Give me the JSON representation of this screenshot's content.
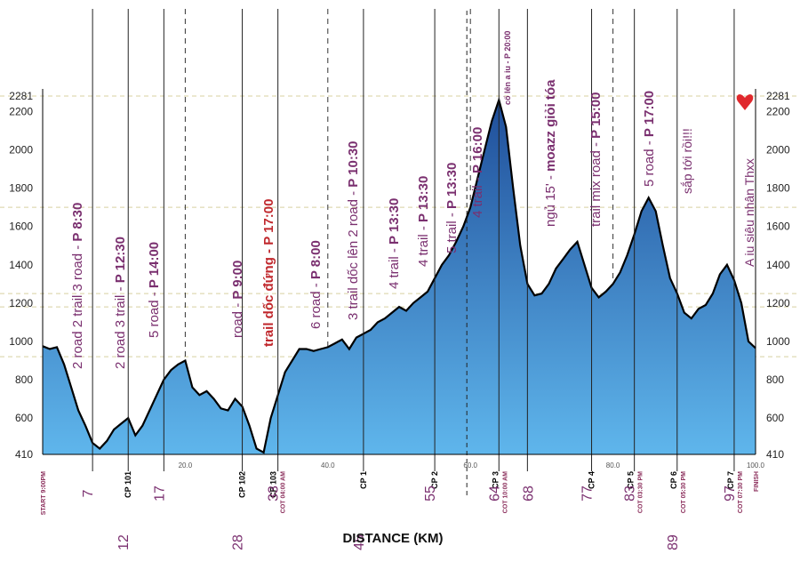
{
  "chart_data": {
    "type": "area",
    "xlabel": "DISTANCE (KM)",
    "xlim": [
      0,
      100
    ],
    "ylim": [
      410,
      2281
    ],
    "y_ticks_left": [
      "2281",
      "2200",
      "2000",
      "1800",
      "1600",
      "1400",
      "1200",
      "1000",
      "800",
      "600",
      "410"
    ],
    "y_ticks_right": [
      "2281",
      "2200",
      "2000",
      "1800",
      "1600",
      "1400",
      "1200",
      "1000",
      "800",
      "600",
      "410"
    ],
    "x_ticks": [
      "20.0",
      "40.0",
      "60.0",
      "80.0",
      "100.0"
    ],
    "colors": {
      "fill_top": "#1f4e9a",
      "fill_bottom": "#5fb6ec",
      "label": "#7a2f6f",
      "accent_red": "#c0282d",
      "heart": "#e0282d"
    },
    "profile": {
      "x": [
        0,
        1,
        2,
        3,
        4,
        5,
        6,
        7,
        8,
        9,
        10,
        11,
        12,
        13,
        14,
        15,
        16,
        17,
        18,
        19,
        20,
        21,
        22,
        23,
        24,
        25,
        26,
        27,
        28,
        29,
        30,
        31,
        32,
        33,
        34,
        35,
        36,
        37,
        38,
        39,
        40,
        41,
        42,
        43,
        44,
        45,
        46,
        47,
        48,
        49,
        50,
        51,
        52,
        53,
        54,
        55,
        56,
        57,
        58,
        59,
        60,
        61,
        62,
        63,
        64,
        65,
        66,
        67,
        68,
        69,
        70,
        71,
        72,
        73,
        74,
        75,
        76,
        77,
        78,
        79,
        80,
        81,
        82,
        83,
        84,
        85,
        86,
        87,
        88,
        89,
        90,
        91,
        92,
        93,
        94,
        95,
        96,
        97,
        98,
        99,
        100
      ],
      "y": [
        975,
        960,
        970,
        880,
        760,
        640,
        560,
        470,
        440,
        480,
        540,
        570,
        600,
        510,
        560,
        640,
        720,
        800,
        850,
        880,
        900,
        760,
        720,
        740,
        700,
        650,
        640,
        700,
        660,
        560,
        440,
        420,
        600,
        720,
        840,
        900,
        960,
        960,
        950,
        960,
        970,
        990,
        1010,
        960,
        1020,
        1040,
        1060,
        1100,
        1120,
        1150,
        1180,
        1160,
        1200,
        1230,
        1260,
        1330,
        1400,
        1450,
        1520,
        1600,
        1700,
        1850,
        2000,
        2150,
        2260,
        2120,
        1800,
        1500,
        1300,
        1240,
        1250,
        1300,
        1380,
        1430,
        1480,
        1520,
        1400,
        1280,
        1230,
        1260,
        1300,
        1360,
        1450,
        1560,
        1680,
        1750,
        1680,
        1500,
        1330,
        1250,
        1150,
        1120,
        1170,
        1190,
        1250,
        1350,
        1400,
        1320,
        1200,
        1000,
        965
      ]
    },
    "checkpoints": [
      {
        "label": "START 9:00PM"
      },
      {
        "label": "CP 101"
      },
      {
        "label": "CP 102"
      },
      {
        "label": "CP 103"
      },
      {
        "label": "COT 04:00 AM"
      },
      {
        "label": "CP 1"
      },
      {
        "label": "CP 2"
      },
      {
        "label": "CP 3"
      },
      {
        "label": "COT 10:00 AM"
      },
      {
        "label": "CP 4"
      },
      {
        "label": "CP 5"
      },
      {
        "label": "COT 03:30 PM"
      },
      {
        "label": "CP 6"
      },
      {
        "label": "COT 05:30 PM"
      },
      {
        "label": "CP 7"
      },
      {
        "label": "COT 07:30 PM"
      },
      {
        "label": "FINISH"
      }
    ],
    "km_markers": [
      "7",
      "12",
      "17",
      "28",
      "33",
      "45",
      "55",
      "64",
      "68",
      "77",
      "83",
      "89",
      "97"
    ],
    "annotations": [
      {
        "plain": "2 road 2 trail 3 road - ",
        "bold": "P 8:30"
      },
      {
        "plain": "2 road 3 trail - ",
        "bold": "P 12:30"
      },
      {
        "plain": "5 road - ",
        "bold": "P 14:00"
      },
      {
        "plain": "road - ",
        "bold": "P 9:00"
      },
      {
        "plain": "trail dốc đứng - ",
        "bold": "P 17:00"
      },
      {
        "plain": "6 road - ",
        "bold": "P 8:00"
      },
      {
        "plain": "3 trail dốc lên 2 road - ",
        "bold": "P 10:30"
      },
      {
        "plain": "4 trail - ",
        "bold": "P 13:30"
      },
      {
        "plain": "4 trail - ",
        "bold": "P 13:30"
      },
      {
        "plain": "5 trail - ",
        "bold": "P 13:30"
      },
      {
        "plain": "4 trail - ",
        "bold": "P 16:00"
      },
      {
        "plain": "",
        "bold": "cố lên a iu - P 20:00"
      },
      {
        "plain": "ngủ 15' - ",
        "bold": "moazz giỏi tóa"
      },
      {
        "plain": "trail mix road - ",
        "bold": "P 15:00"
      },
      {
        "plain": "5 road - ",
        "bold": "P 17:00"
      },
      {
        "plain": "sắp tới rồi!!!",
        "bold": ""
      },
      {
        "plain": "A iu siêu nhân Thxx",
        "bold": ""
      }
    ]
  }
}
